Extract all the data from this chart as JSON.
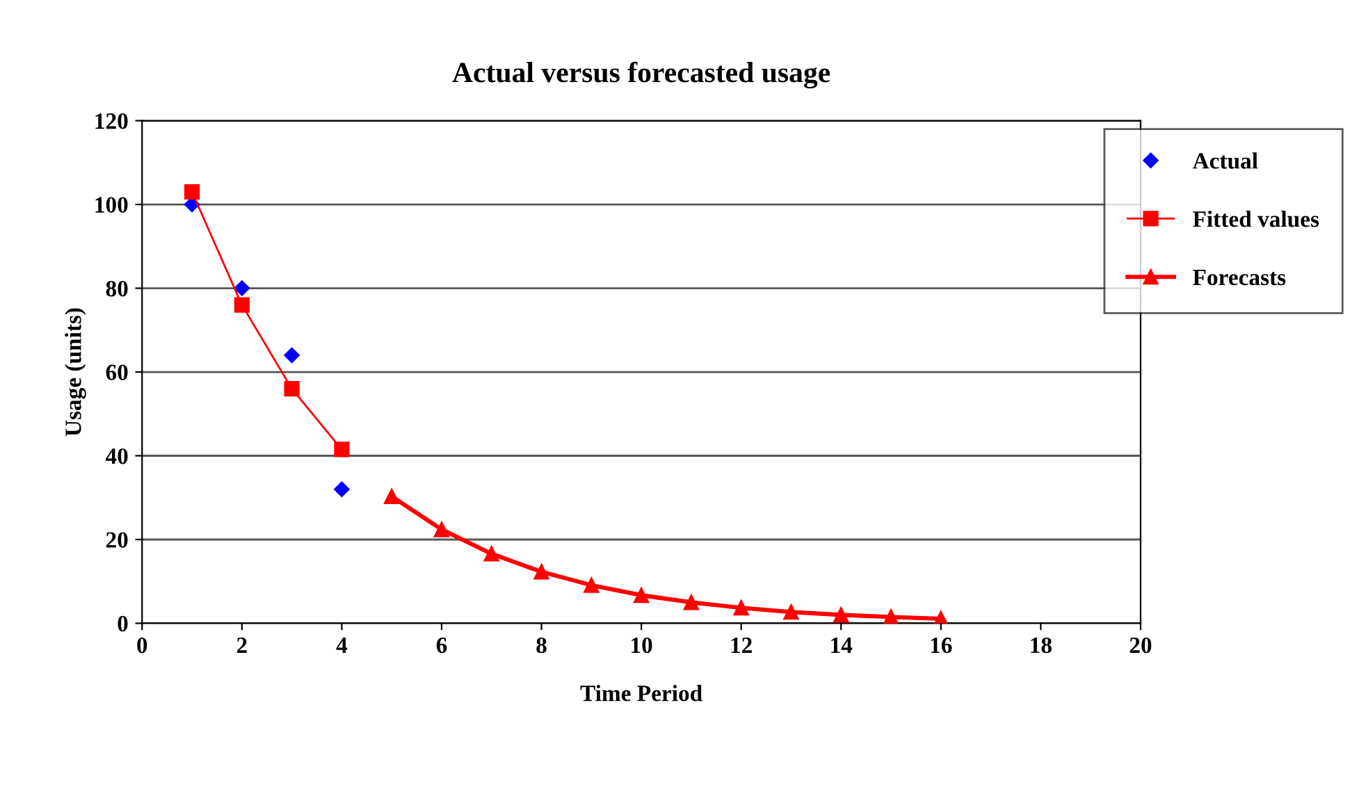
{
  "chart_data": {
    "type": "line",
    "title": "Actual versus forecasted usage",
    "xlabel": "Time Period",
    "ylabel": "Usage (units)",
    "xlim": [
      0,
      20
    ],
    "xticks": [
      0,
      2,
      4,
      6,
      8,
      10,
      12,
      14,
      16,
      18,
      20
    ],
    "ylim": [
      0,
      120
    ],
    "yticks": [
      0,
      20,
      40,
      60,
      80,
      100,
      120
    ],
    "grid": "y",
    "legend": "top right",
    "series": [
      {
        "name": "Actual",
        "type": "scatter",
        "color": "#0000ff",
        "marker": "diamond",
        "x": [
          1,
          2,
          3,
          4
        ],
        "values": [
          100,
          80,
          64,
          32
        ]
      },
      {
        "name": "Fitted values",
        "color": "#ff0000",
        "marker": "square",
        "line_style": "solid",
        "x": [
          1,
          2,
          3,
          4
        ],
        "values": [
          103,
          76,
          56,
          41.5
        ]
      },
      {
        "name": "Forecasts",
        "color": "#ff0000",
        "marker": "triangle",
        "line_style": "solid",
        "x": [
          5,
          6,
          7,
          8,
          9,
          10,
          11,
          12,
          13,
          14,
          15,
          16
        ],
        "values": [
          30.3,
          22.4,
          16.6,
          12.3,
          9.1,
          6.7,
          5.0,
          3.7,
          2.7,
          2.0,
          1.5,
          1.1
        ]
      }
    ]
  }
}
